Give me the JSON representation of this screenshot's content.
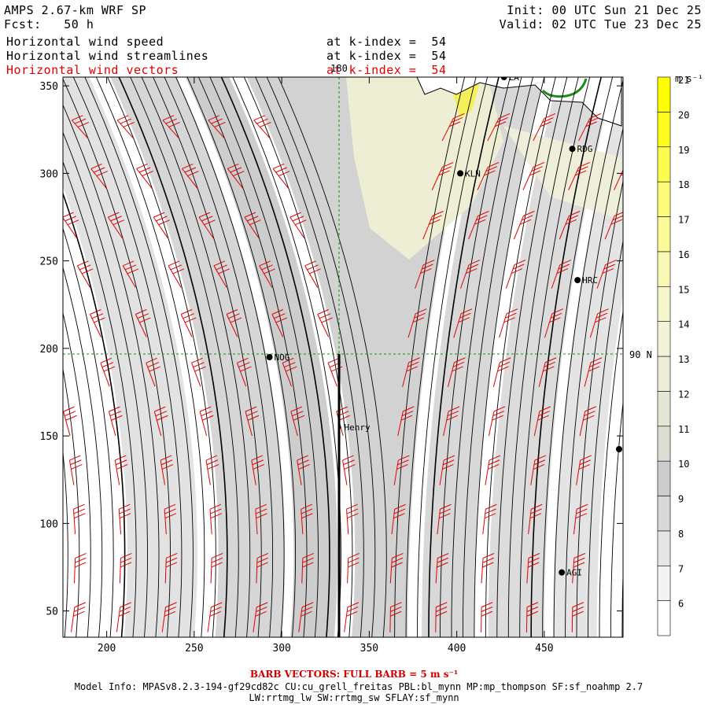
{
  "header": {
    "title": "AMPS 2.67-km WRF SP",
    "fcst": "Fcst:   50 h",
    "init": "Init: 00 UTC Sun 21 Dec 25",
    "valid": "Valid: 02 UTC Tue 23 Dec 25",
    "fields": [
      {
        "name": "Horizontal wind speed",
        "level": "at k-index =  54",
        "color": "#000000"
      },
      {
        "name": "Horizontal wind streamlines",
        "level": "at k-index =  54",
        "color": "#000000"
      },
      {
        "name": "Horizontal wind vectors",
        "level": "at k-index =  54",
        "color": "#e00000"
      }
    ]
  },
  "map": {
    "x_range": [
      175,
      495
    ],
    "y_range": [
      35,
      355
    ],
    "x_ticks": [
      "200",
      "250",
      "300",
      "350",
      "400",
      "450"
    ],
    "y_ticks": [
      "50",
      "100",
      "150",
      "200",
      "250",
      "300",
      "350"
    ],
    "lon_label": "180",
    "lat_label": "90 N",
    "stations": [
      {
        "name": "NOG",
        "x": 293,
        "y": 195
      },
      {
        "name": "Henry",
        "x": 333,
        "y": 155
      },
      {
        "name": "KLN",
        "x": 402,
        "y": 300
      },
      {
        "name": "RDG",
        "x": 466,
        "y": 314
      },
      {
        "name": "HRC",
        "x": 469,
        "y": 239
      },
      {
        "name": "AGI",
        "x": 460,
        "y": 72
      },
      {
        "name": "LA",
        "x": 427,
        "y": 355
      }
    ]
  },
  "colorbar": {
    "unit": "m s⁻¹",
    "levels": [
      "6",
      "7",
      "8",
      "9",
      "10",
      "11",
      "12",
      "13",
      "14",
      "15",
      "16",
      "17",
      "18",
      "19",
      "20",
      "21"
    ],
    "colors": [
      "#ffffff",
      "#f3f3f3",
      "#e6e6e6",
      "#d9d9d9",
      "#cccccc",
      "#dcdcd2",
      "#e6e6d6",
      "#ececd8",
      "#f2f2d8",
      "#f6f6cc",
      "#f8f8b4",
      "#fafa98",
      "#fbfb78",
      "#fcfc50",
      "#fdfd20",
      "#ffff00"
    ]
  },
  "footer": {
    "barb": "BARB VECTORS:  FULL BARB = 5 m s⁻¹",
    "model1": "Model Info: MPASv8.2.3-194-gf29cd82c CU:cu_grell_freitas PBL:bl_mynn MP:mp_thompson SF:sf_noahmp 2.7",
    "model2": "LW:rrtmg_lw SW:rrtmg_sw SFLAY:sf_mynn"
  }
}
